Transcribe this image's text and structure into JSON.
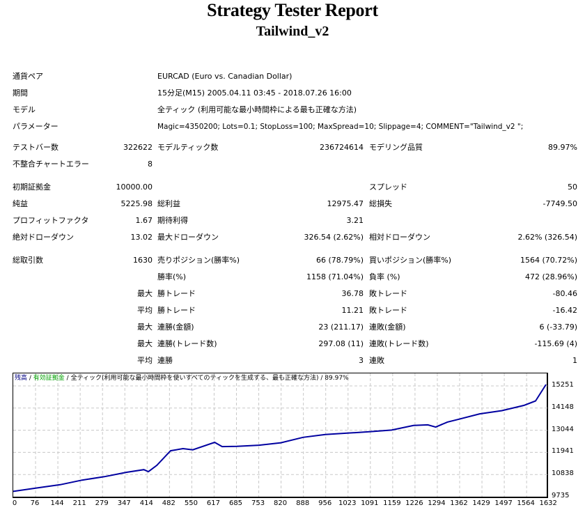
{
  "report": {
    "title": "Strategy Tester Report",
    "subtitle": "Tailwind_v2"
  },
  "info": {
    "symbol_label": "通貨ペア",
    "symbol_value": "EURCAD (Euro vs. Canadian Dollar)",
    "period_label": "期間",
    "period_value": "15分足(M15) 2005.04.11 03:45 - 2018.07.26 16:00",
    "model_label": "モデル",
    "model_value": "全ティック (利用可能な最小時間枠による最も正確な方法)",
    "params_label": "パラメーター",
    "params_value": "Magic=4350200; Lots=0.1; StopLoss=100; MaxSpread=10; Slippage=4; COMMENT=\"Tailwind_v2 \";"
  },
  "stats": {
    "bars_label": "テストバー数",
    "bars_value": "322622",
    "ticks_label": "モデルティック数",
    "ticks_value": "236724614",
    "quality_label": "モデリング品質",
    "quality_value": "89.97%",
    "mismatch_label": "不整合チャートエラー",
    "mismatch_value": "8",
    "deposit_label": "初期証拠金",
    "deposit_value": "10000.00",
    "spread_label": "スプレッド",
    "spread_value": "50",
    "net_label": "純益",
    "net_value": "5225.98",
    "gross_profit_label": "総利益",
    "gross_profit_value": "12975.47",
    "gross_loss_label": "総損失",
    "gross_loss_value": "-7749.50",
    "pf_label": "プロフィットファクタ",
    "pf_value": "1.67",
    "expected_label": "期待利得",
    "expected_value": "3.21",
    "abs_dd_label": "絶対ドローダウン",
    "abs_dd_value": "13.02",
    "max_dd_label": "最大ドローダウン",
    "max_dd_value": "326.54 (2.62%)",
    "rel_dd_label": "相対ドローダウン",
    "rel_dd_value": "2.62% (326.54)",
    "trades_label": "総取引数",
    "trades_value": "1630",
    "short_label": "売りポジション(勝率%)",
    "short_value": "66 (78.79%)",
    "long_label": "買いポジション(勝率%)",
    "long_value": "1564 (70.72%)",
    "win_label": "勝率(%)",
    "win_value": "1158 (71.04%)",
    "loss_label": "負率 (%)",
    "loss_value": "472 (28.96%)",
    "max_prefix": "最大",
    "avg_prefix": "平均",
    "largest_win_label": "勝トレード",
    "largest_win_value": "36.78",
    "largest_loss_label": "敗トレード",
    "largest_loss_value": "-80.46",
    "avg_win_label": "勝トレード",
    "avg_win_value": "11.21",
    "avg_loss_label": "敗トレード",
    "avg_loss_value": "-16.42",
    "max_consec_wins_label": "連勝(金額)",
    "max_consec_wins_value": "23 (211.17)",
    "max_consec_losses_label": "連敗(金額)",
    "max_consec_losses_value": "6 (-33.79)",
    "max_consec_profit_label": "連勝(トレード数)",
    "max_consec_profit_value": "297.08 (11)",
    "max_consec_loss_label": "連敗(トレード数)",
    "max_consec_loss_value": "-115.69 (4)",
    "avg_consec_wins_label": "連勝",
    "avg_consec_wins_value": "3",
    "avg_consec_losses_label": "連敗",
    "avg_consec_losses_value": "1"
  },
  "chart_legend": {
    "balance": "残高",
    "sep1": " / ",
    "equity": "有効証拠金",
    "sep2": " / ",
    "model": "全ティック(利用可能な最小時間枠を使いすべてのティックを生成する、最も正確な方法)",
    "sep3": " / ",
    "quality": "89.97%"
  },
  "colors": {
    "balance_line": "#0000a0",
    "balance_legend": "#000080",
    "equity_legend": "#00a000",
    "grid": "#c8c8c8"
  },
  "chart_data": {
    "type": "line",
    "title": "残高 / 有効証拠金 / 全ティック(利用可能な最小時間枠を使いすべてのティックを生成する、最も正確な方法) / 89.97%",
    "xlabel": "",
    "ylabel": "",
    "x_ticks": [
      "0",
      "76",
      "144",
      "211",
      "279",
      "347",
      "414",
      "482",
      "550",
      "617",
      "685",
      "753",
      "820",
      "888",
      "956",
      "1023",
      "1091",
      "1159",
      "1226",
      "1294",
      "1362",
      "1429",
      "1497",
      "1564",
      "1632"
    ],
    "y_ticks": [
      "9735",
      "10838",
      "11941",
      "13044",
      "14148",
      "15251"
    ],
    "xlim": [
      0,
      1640
    ],
    "ylim": [
      9735,
      15500
    ],
    "grid": true,
    "series": [
      {
        "name": "残高",
        "x": [
          0,
          76,
          144,
          211,
          279,
          347,
          400,
          414,
          440,
          482,
          520,
          550,
          617,
          640,
          685,
          753,
          820,
          888,
          956,
          1023,
          1091,
          1159,
          1226,
          1270,
          1294,
          1330,
          1362,
          1429,
          1497,
          1564,
          1600,
          1632
        ],
        "values": [
          10000,
          10180,
          10330,
          10560,
          10730,
          10950,
          11080,
          10980,
          11300,
          12020,
          12130,
          12070,
          12440,
          12230,
          12240,
          12300,
          12420,
          12690,
          12830,
          12900,
          12970,
          13050,
          13280,
          13310,
          13200,
          13450,
          13580,
          13860,
          14020,
          14280,
          14500,
          15320
        ]
      }
    ]
  }
}
